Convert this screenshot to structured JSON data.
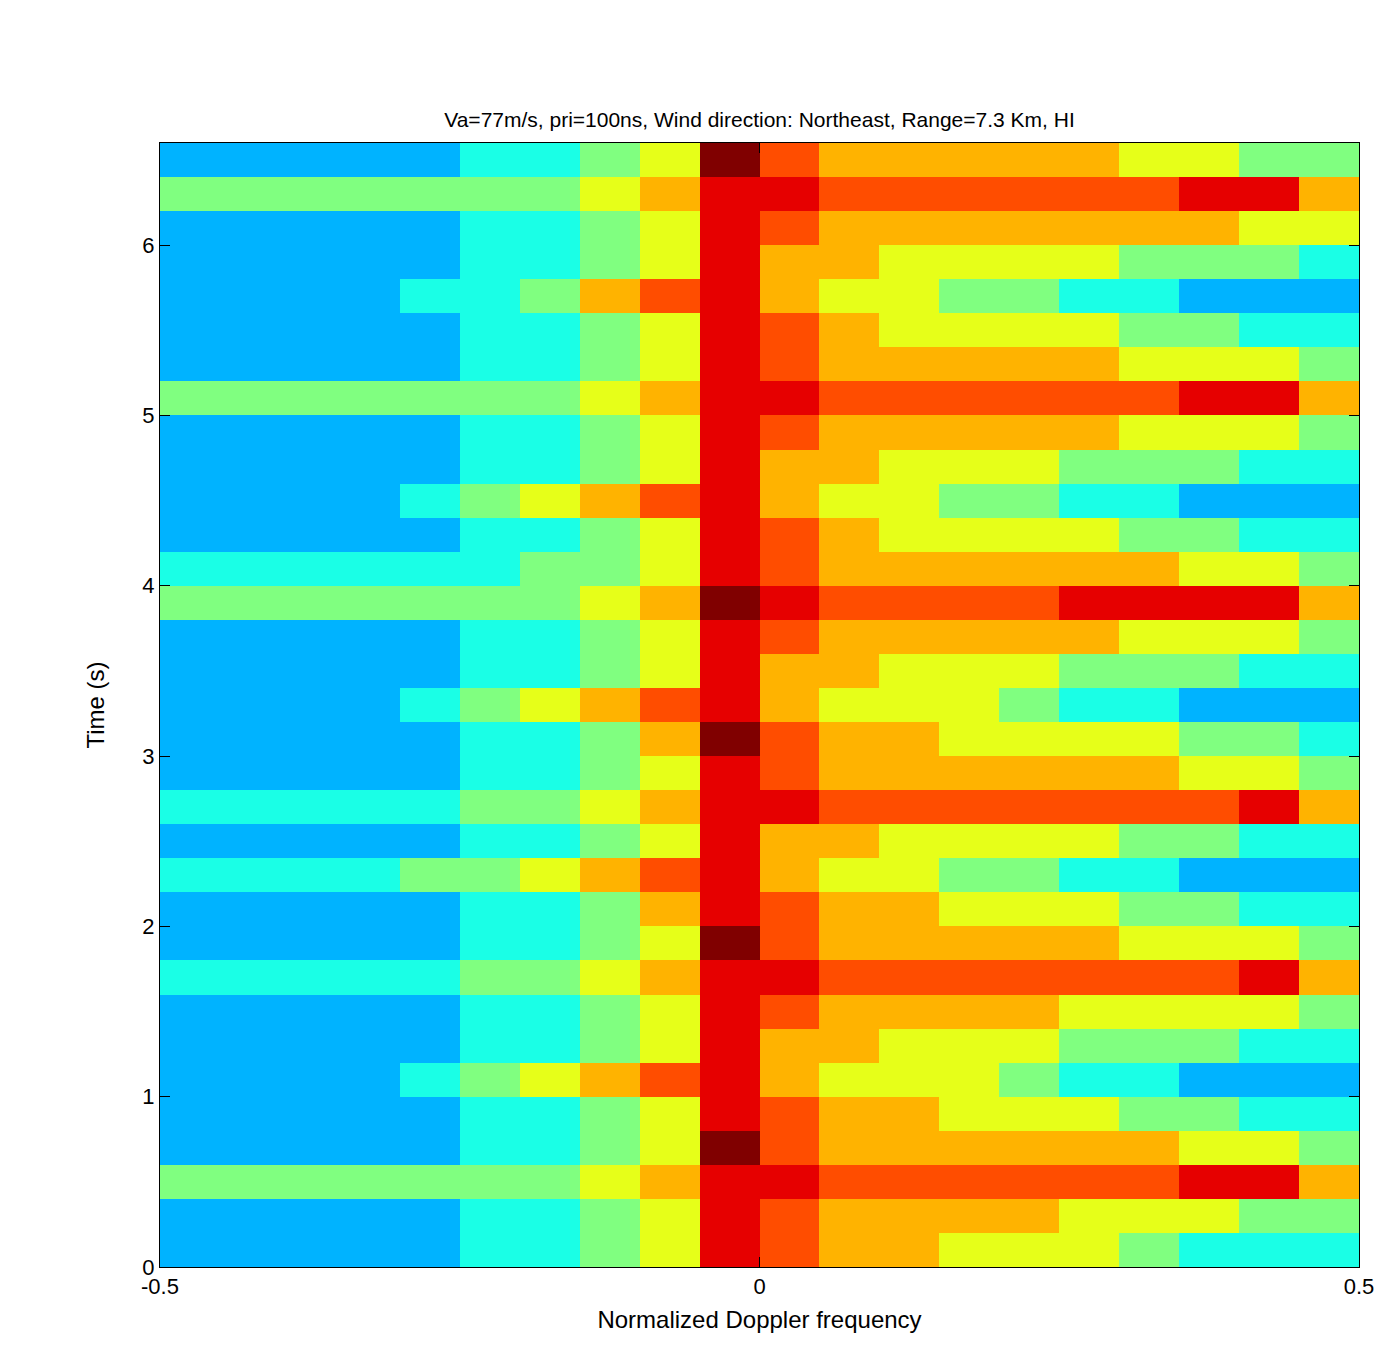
{
  "chart_data": {
    "type": "heatmap",
    "title": "Va=77m/s, pri=100ns, Wind direction: Northeast, Range=7.3 Km, HI",
    "x_label": "Normalized Doppler frequency",
    "y_label": "Time (s)",
    "color": "jet",
    "xlim": [
      -0.5,
      0.5
    ],
    "ylim": [
      0,
      6.6
    ],
    "xticks": [
      -0.5,
      0,
      0.5
    ],
    "yticks": [
      0,
      1,
      2,
      3,
      4,
      5,
      6
    ],
    "zlim": [
      0,
      10
    ],
    "x": [
      -0.475,
      -0.425,
      -0.375,
      -0.325,
      -0.275,
      -0.225,
      -0.175,
      -0.125,
      -0.075,
      -0.025,
      0.025,
      0.075,
      0.125,
      0.175,
      0.225,
      0.275,
      0.325,
      0.375,
      0.425,
      0.475
    ],
    "y": [
      0.1,
      0.3,
      0.5,
      0.7,
      0.9,
      1.1,
      1.3,
      1.5,
      1.7,
      1.9,
      2.1,
      2.3,
      2.5,
      2.7,
      2.9,
      3.1,
      3.3,
      3.5,
      3.7,
      3.9,
      4.1,
      4.3,
      4.5,
      4.7,
      4.9,
      5.1,
      5.3,
      5.5,
      5.7,
      5.9,
      6.1,
      6.3,
      6.5
    ],
    "cells": [
      [
        3,
        3,
        3,
        3,
        3,
        4,
        4,
        5,
        6,
        9,
        8,
        7,
        7,
        6,
        6,
        6,
        5,
        4,
        4,
        4
      ],
      [
        3,
        3,
        3,
        3,
        3,
        4,
        4,
        5,
        6,
        9,
        8,
        7,
        7,
        7,
        7,
        6,
        6,
        6,
        5,
        5
      ],
      [
        5,
        5,
        5,
        5,
        5,
        5,
        5,
        6,
        7,
        9,
        9,
        8,
        8,
        8,
        8,
        8,
        8,
        9,
        9,
        7
      ],
      [
        3,
        3,
        3,
        3,
        3,
        4,
        4,
        5,
        6,
        10,
        8,
        7,
        7,
        7,
        7,
        7,
        7,
        6,
        6,
        5
      ],
      [
        3,
        3,
        3,
        3,
        3,
        4,
        4,
        5,
        6,
        9,
        8,
        7,
        7,
        6,
        6,
        6,
        5,
        5,
        4,
        4
      ],
      [
        3,
        3,
        3,
        3,
        4,
        5,
        6,
        7,
        8,
        9,
        7,
        6,
        6,
        6,
        5,
        4,
        4,
        3,
        3,
        3
      ],
      [
        3,
        3,
        3,
        3,
        3,
        4,
        4,
        5,
        6,
        9,
        7,
        7,
        6,
        6,
        6,
        5,
        5,
        5,
        4,
        4
      ],
      [
        3,
        3,
        3,
        3,
        3,
        4,
        4,
        5,
        6,
        9,
        8,
        7,
        7,
        7,
        7,
        6,
        6,
        6,
        6,
        5
      ],
      [
        4,
        4,
        4,
        4,
        4,
        5,
        5,
        6,
        7,
        9,
        9,
        8,
        8,
        8,
        8,
        8,
        8,
        8,
        9,
        7
      ],
      [
        3,
        3,
        3,
        3,
        3,
        4,
        4,
        5,
        6,
        10,
        8,
        7,
        7,
        7,
        7,
        7,
        6,
        6,
        6,
        5
      ],
      [
        3,
        3,
        3,
        3,
        3,
        4,
        4,
        5,
        7,
        9,
        8,
        7,
        7,
        6,
        6,
        6,
        5,
        5,
        4,
        4
      ],
      [
        4,
        4,
        4,
        4,
        5,
        5,
        6,
        7,
        8,
        9,
        7,
        6,
        6,
        5,
        5,
        4,
        4,
        3,
        3,
        3
      ],
      [
        3,
        3,
        3,
        3,
        3,
        4,
        4,
        5,
        6,
        9,
        7,
        7,
        6,
        6,
        6,
        6,
        5,
        5,
        4,
        4
      ],
      [
        4,
        4,
        4,
        4,
        4,
        5,
        5,
        6,
        7,
        9,
        9,
        8,
        8,
        8,
        8,
        8,
        8,
        8,
        9,
        7
      ],
      [
        3,
        3,
        3,
        3,
        3,
        4,
        4,
        5,
        6,
        9,
        8,
        7,
        7,
        7,
        7,
        7,
        7,
        6,
        6,
        5
      ],
      [
        3,
        3,
        3,
        3,
        3,
        4,
        4,
        5,
        7,
        10,
        8,
        7,
        7,
        6,
        6,
        6,
        6,
        5,
        5,
        4
      ],
      [
        3,
        3,
        3,
        3,
        4,
        5,
        6,
        7,
        8,
        9,
        7,
        6,
        6,
        6,
        5,
        4,
        4,
        3,
        3,
        3
      ],
      [
        3,
        3,
        3,
        3,
        3,
        4,
        4,
        5,
        6,
        9,
        7,
        7,
        6,
        6,
        6,
        5,
        5,
        5,
        4,
        4
      ],
      [
        3,
        3,
        3,
        3,
        3,
        4,
        4,
        5,
        6,
        9,
        8,
        7,
        7,
        7,
        7,
        7,
        6,
        6,
        6,
        5
      ],
      [
        5,
        5,
        5,
        5,
        5,
        5,
        5,
        6,
        7,
        10,
        9,
        8,
        8,
        8,
        8,
        9,
        9,
        9,
        9,
        7
      ],
      [
        4,
        4,
        4,
        4,
        4,
        4,
        5,
        5,
        6,
        9,
        8,
        7,
        7,
        7,
        7,
        7,
        7,
        6,
        6,
        5
      ],
      [
        3,
        3,
        3,
        3,
        3,
        4,
        4,
        5,
        6,
        9,
        8,
        7,
        6,
        6,
        6,
        6,
        5,
        5,
        4,
        4
      ],
      [
        3,
        3,
        3,
        3,
        4,
        5,
        6,
        7,
        8,
        9,
        7,
        6,
        6,
        5,
        5,
        4,
        4,
        3,
        3,
        3
      ],
      [
        3,
        3,
        3,
        3,
        3,
        4,
        4,
        5,
        6,
        9,
        7,
        7,
        6,
        6,
        6,
        5,
        5,
        5,
        4,
        4
      ],
      [
        3,
        3,
        3,
        3,
        3,
        4,
        4,
        5,
        6,
        9,
        8,
        7,
        7,
        7,
        7,
        7,
        6,
        6,
        6,
        5
      ],
      [
        5,
        5,
        5,
        5,
        5,
        5,
        5,
        6,
        7,
        9,
        9,
        8,
        8,
        8,
        8,
        8,
        8,
        9,
        9,
        7
      ],
      [
        3,
        3,
        3,
        3,
        3,
        4,
        4,
        5,
        6,
        9,
        8,
        7,
        7,
        7,
        7,
        7,
        6,
        6,
        6,
        5
      ],
      [
        3,
        3,
        3,
        3,
        3,
        4,
        4,
        5,
        6,
        9,
        8,
        7,
        6,
        6,
        6,
        6,
        5,
        5,
        4,
        4
      ],
      [
        3,
        3,
        3,
        3,
        4,
        4,
        5,
        7,
        8,
        9,
        7,
        6,
        6,
        5,
        5,
        4,
        4,
        3,
        3,
        3
      ],
      [
        3,
        3,
        3,
        3,
        3,
        4,
        4,
        5,
        6,
        9,
        7,
        7,
        6,
        6,
        6,
        6,
        5,
        5,
        5,
        4
      ],
      [
        3,
        3,
        3,
        3,
        3,
        4,
        4,
        5,
        6,
        9,
        8,
        7,
        7,
        7,
        7,
        7,
        7,
        7,
        6,
        6
      ],
      [
        5,
        5,
        5,
        5,
        5,
        5,
        5,
        6,
        7,
        9,
        9,
        8,
        8,
        8,
        8,
        8,
        8,
        9,
        9,
        7
      ],
      [
        3,
        3,
        3,
        3,
        3,
        4,
        4,
        5,
        6,
        10,
        8,
        7,
        7,
        7,
        7,
        7,
        6,
        6,
        5,
        5
      ]
    ]
  }
}
